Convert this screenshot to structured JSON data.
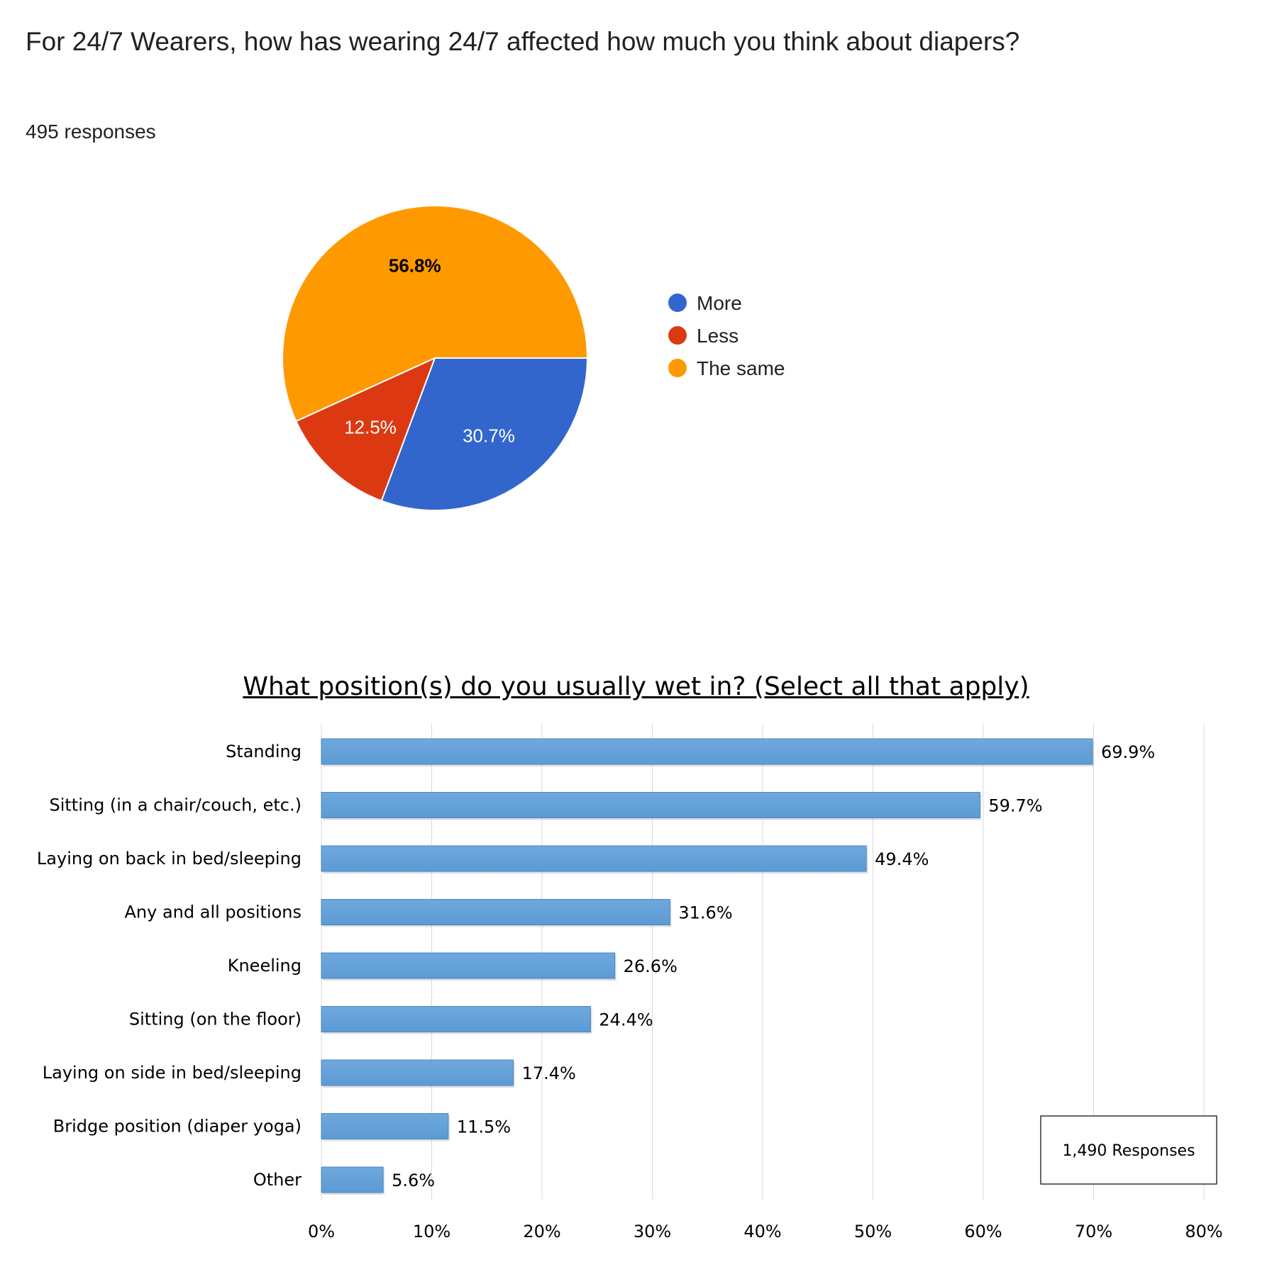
{
  "pie_question": {
    "title": "For 24/7 Wearers, how has wearing 24/7 affected how much you think about diapers?",
    "responses": "495 responses"
  },
  "bar_question": {
    "title": "What position(s) do you usually wet in? (Select all that apply)",
    "response_box": "1,490 Responses"
  },
  "colors": {
    "more": "#3366cc",
    "less": "#dc3912",
    "same": "#ff9900",
    "bar": "#5b9bd5"
  },
  "chart_data": [
    {
      "type": "pie",
      "title": "For 24/7 Wearers, how has wearing 24/7 affected how much you think about diapers?",
      "categories": [
        "More",
        "Less",
        "The same"
      ],
      "values": [
        30.7,
        12.5,
        56.8
      ],
      "labels": [
        "30.7%",
        "12.5%",
        "56.8%"
      ],
      "legend_position": "right"
    },
    {
      "type": "bar",
      "orientation": "horizontal",
      "title": "What position(s) do you usually wet in? (Select all that apply)",
      "categories": [
        "Standing",
        "Sitting (in a chair/couch, etc.)",
        "Laying on back in bed/sleeping",
        "Any and all positions",
        "Kneeling",
        "Sitting (on the floor)",
        "Laying on side in bed/sleeping",
        "Bridge position (diaper yoga)",
        "Other"
      ],
      "values": [
        69.9,
        59.7,
        49.4,
        31.6,
        26.6,
        24.4,
        17.4,
        11.5,
        5.6
      ],
      "labels": [
        "69.9%",
        "59.7%",
        "49.4%",
        "31.6%",
        "26.6%",
        "24.4%",
        "17.4%",
        "11.5%",
        "5.6%"
      ],
      "xlim": [
        0,
        80
      ],
      "xticks": [
        "0%",
        "10%",
        "20%",
        "30%",
        "40%",
        "50%",
        "60%",
        "70%",
        "80%"
      ],
      "grid": true,
      "annotation": "1,490 Responses"
    }
  ]
}
